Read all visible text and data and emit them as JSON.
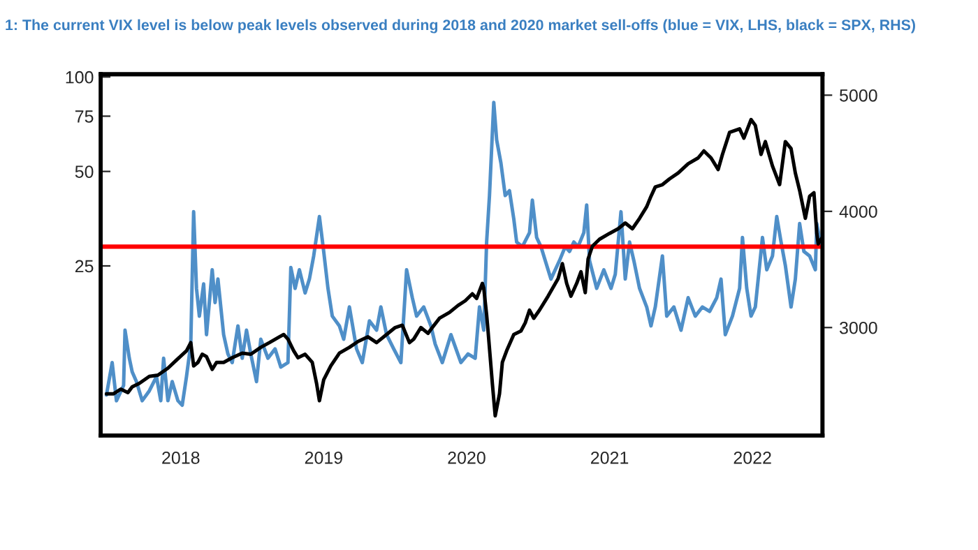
{
  "chart_data": {
    "type": "line",
    "title": "1: The current VIX level is below peak levels observed during 2018 and 2020 market sell-offs (blue = VIX, LHS, black = SPX, RHS)",
    "xlim": [
      2017.44,
      2022.49
    ],
    "xticks": [
      2018,
      2019,
      2020,
      2021,
      2022
    ],
    "ylim": [
      7.2,
      102
    ],
    "yticks": [
      25,
      50,
      75,
      100
    ],
    "y2lim": [
      2070,
      5180
    ],
    "y2ticks": [
      3000,
      4000,
      5000
    ],
    "log": "y",
    "ref_lines": [
      {
        "axis": "y",
        "value": 28.8,
        "color": "#ff0000"
      }
    ],
    "series": [
      {
        "type": "line",
        "color": "#4f8fc8",
        "x": [
          2017.48,
          2017.52,
          2017.55,
          2017.6,
          2017.61,
          2017.64,
          2017.66,
          2017.69,
          2017.73,
          2017.78,
          2017.83,
          2017.86,
          2017.88,
          2017.91,
          2017.94,
          2017.98,
          2018.01,
          2018.04,
          2018.07,
          2018.09,
          2018.11,
          2018.13,
          2018.16,
          2018.18,
          2018.22,
          2018.24,
          2018.26,
          2018.3,
          2018.33,
          2018.36,
          2018.4,
          2018.43,
          2018.46,
          2018.49,
          2018.53,
          2018.56,
          2018.61,
          2018.66,
          2018.7,
          2018.75,
          2018.77,
          2018.8,
          2018.83,
          2018.87,
          2018.9,
          2018.93,
          2018.97,
          2019.0,
          2019.03,
          2019.06,
          2019.11,
          2019.14,
          2019.18,
          2019.23,
          2019.27,
          2019.32,
          2019.37,
          2019.4,
          2019.44,
          2019.49,
          2019.54,
          2019.58,
          2019.62,
          2019.65,
          2019.7,
          2019.75,
          2019.78,
          2019.83,
          2019.89,
          2019.96,
          2020.01,
          2020.06,
          2020.09,
          2020.12,
          2020.14,
          2020.16,
          2020.19,
          2020.21,
          2020.24,
          2020.27,
          2020.3,
          2020.33,
          2020.35,
          2020.39,
          2020.44,
          2020.46,
          2020.49,
          2020.52,
          2020.55,
          2020.59,
          2020.62,
          2020.65,
          2020.69,
          2020.72,
          2020.75,
          2020.78,
          2020.82,
          2020.84,
          2020.86,
          2020.91,
          2020.96,
          2021.01,
          2021.04,
          2021.08,
          2021.11,
          2021.14,
          2021.17,
          2021.21,
          2021.26,
          2021.29,
          2021.32,
          2021.37,
          2021.4,
          2021.45,
          2021.5,
          2021.55,
          2021.6,
          2021.65,
          2021.7,
          2021.75,
          2021.78,
          2021.81,
          2021.86,
          2021.91,
          2021.93,
          2021.96,
          2021.99,
          2022.02,
          2022.07,
          2022.1,
          2022.14,
          2022.17,
          2022.2,
          2022.23,
          2022.27,
          2022.3,
          2022.33,
          2022.36,
          2022.4,
          2022.44,
          2022.45,
          2022.48
        ],
        "values": [
          9.7,
          12.3,
          9.3,
          10.4,
          15.6,
          12.7,
          11.5,
          10.7,
          9.3,
          10.0,
          11.1,
          9.3,
          12.7,
          9.3,
          10.7,
          9.3,
          9.0,
          11.1,
          14.1,
          37.2,
          21.2,
          17.3,
          21.9,
          15.1,
          24.3,
          19.1,
          22.7,
          15.1,
          13.1,
          12.3,
          16.1,
          12.7,
          15.6,
          13.1,
          10.7,
          14.6,
          12.7,
          13.6,
          11.9,
          12.3,
          24.7,
          21.2,
          24.3,
          20.5,
          22.7,
          26.9,
          35.9,
          27.8,
          21.2,
          17.3,
          16.1,
          14.6,
          18.5,
          13.6,
          12.3,
          16.7,
          15.6,
          18.5,
          15.1,
          13.6,
          12.3,
          24.3,
          19.8,
          17.3,
          18.5,
          16.1,
          14.1,
          12.3,
          15.1,
          12.3,
          13.1,
          12.7,
          18.5,
          15.6,
          29.8,
          41.9,
          83.0,
          63.1,
          53.2,
          41.9,
          43.4,
          35.3,
          29.8,
          28.8,
          31.9,
          40.5,
          30.8,
          28.8,
          26.0,
          22.7,
          24.3,
          26.0,
          28.8,
          27.8,
          29.8,
          28.8,
          31.9,
          39.1,
          26.0,
          21.2,
          24.3,
          21.2,
          23.5,
          37.2,
          22.7,
          29.8,
          26.0,
          21.2,
          18.5,
          16.1,
          18.5,
          26.9,
          17.3,
          18.5,
          15.6,
          19.8,
          17.3,
          18.5,
          17.9,
          19.8,
          22.7,
          15.1,
          17.3,
          21.2,
          30.8,
          21.2,
          17.3,
          18.5,
          30.8,
          24.3,
          26.9,
          35.9,
          29.8,
          25.1,
          18.5,
          22.7,
          34.1,
          27.8,
          26.9,
          24.3,
          34.1,
          28.8
        ]
      },
      {
        "type": "line",
        "color": "#000000",
        "axis": "y2",
        "x": [
          2017.48,
          2017.53,
          2017.58,
          2017.63,
          2017.66,
          2017.71,
          2017.78,
          2017.84,
          2017.91,
          2017.97,
          2018.04,
          2018.07,
          2018.09,
          2018.12,
          2018.15,
          2018.18,
          2018.22,
          2018.25,
          2018.3,
          2018.36,
          2018.43,
          2018.49,
          2018.56,
          2018.62,
          2018.69,
          2018.72,
          2018.75,
          2018.79,
          2018.82,
          2018.87,
          2018.92,
          2018.95,
          2018.97,
          2019.0,
          2019.05,
          2019.11,
          2019.18,
          2019.24,
          2019.31,
          2019.37,
          2019.44,
          2019.5,
          2019.55,
          2019.6,
          2019.63,
          2019.68,
          2019.73,
          2019.76,
          2019.81,
          2019.88,
          2019.94,
          2019.99,
          2020.04,
          2020.07,
          2020.11,
          2020.12,
          2020.14,
          2020.15,
          2020.18,
          2020.2,
          2020.23,
          2020.25,
          2020.28,
          2020.33,
          2020.38,
          2020.41,
          2020.44,
          2020.47,
          2020.51,
          2020.57,
          2020.64,
          2020.67,
          2020.7,
          2020.73,
          2020.77,
          2020.8,
          2020.83,
          2020.85,
          2020.88,
          2020.93,
          2021.0,
          2021.06,
          2021.11,
          2021.16,
          2021.21,
          2021.26,
          2021.29,
          2021.32,
          2021.37,
          2021.42,
          2021.48,
          2021.55,
          2021.62,
          2021.66,
          2021.71,
          2021.76,
          2021.79,
          2021.84,
          2021.91,
          2021.94,
          2021.99,
          2022.02,
          2022.06,
          2022.09,
          2022.14,
          2022.19,
          2022.23,
          2022.27,
          2022.3,
          2022.33,
          2022.37,
          2022.4,
          2022.43,
          2022.45,
          2022.46,
          2022.49
        ],
        "values": [
          2430,
          2430,
          2470,
          2440,
          2490,
          2520,
          2580,
          2590,
          2650,
          2720,
          2800,
          2870,
          2670,
          2700,
          2770,
          2750,
          2640,
          2700,
          2700,
          2740,
          2780,
          2770,
          2830,
          2870,
          2920,
          2940,
          2900,
          2800,
          2740,
          2770,
          2700,
          2520,
          2370,
          2550,
          2670,
          2780,
          2830,
          2880,
          2920,
          2870,
          2940,
          3000,
          3020,
          2870,
          2900,
          3000,
          2950,
          3000,
          3080,
          3130,
          3190,
          3230,
          3290,
          3250,
          3380,
          3340,
          3110,
          2970,
          2520,
          2240,
          2430,
          2700,
          2800,
          2940,
          2970,
          3040,
          3150,
          3080,
          3150,
          3270,
          3420,
          3550,
          3380,
          3270,
          3380,
          3480,
          3300,
          3590,
          3700,
          3760,
          3810,
          3850,
          3900,
          3850,
          3940,
          4040,
          4130,
          4210,
          4230,
          4280,
          4330,
          4410,
          4460,
          4520,
          4460,
          4360,
          4490,
          4680,
          4710,
          4630,
          4790,
          4740,
          4490,
          4600,
          4390,
          4230,
          4600,
          4540,
          4330,
          4180,
          3940,
          4130,
          4160,
          3810,
          3720,
          3780
        ]
      }
    ]
  }
}
